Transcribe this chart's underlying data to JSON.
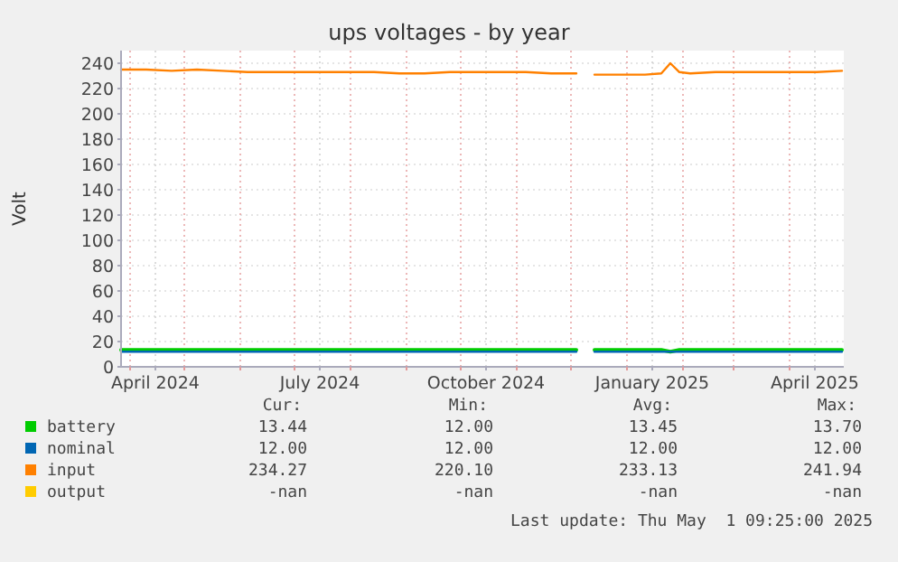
{
  "chart_data": {
    "type": "line",
    "title": "ups voltages - by year",
    "ylabel": "Volt",
    "x": [
      "2024-03-27",
      "2024-04-10",
      "2024-04-24",
      "2024-05-08",
      "2024-05-22",
      "2024-06-05",
      "2024-06-19",
      "2024-07-03",
      "2024-07-17",
      "2024-07-31",
      "2024-08-14",
      "2024-08-28",
      "2024-09-11",
      "2024-09-25",
      "2024-10-09",
      "2024-10-23",
      "2024-11-06",
      "2024-11-20",
      "2024-12-04",
      "2024-12-11",
      "2024-12-14",
      "2024-12-28",
      "2025-01-11",
      "2025-01-20",
      "2025-01-25",
      "2025-01-30",
      "2025-02-05",
      "2025-02-19",
      "2025-03-05",
      "2025-03-19",
      "2025-04-02",
      "2025-04-16",
      "2025-04-30"
    ],
    "series": [
      {
        "name": "battery",
        "color": "#00cc00",
        "values": [
          13.4,
          13.4,
          13.4,
          13.4,
          13.4,
          13.4,
          13.4,
          13.4,
          13.4,
          13.4,
          13.4,
          13.4,
          13.4,
          13.4,
          13.4,
          13.4,
          13.4,
          13.4,
          13.4,
          null,
          13.4,
          13.4,
          13.4,
          13.4,
          12,
          13.4,
          13.4,
          13.4,
          13.4,
          13.4,
          13.4,
          13.4,
          13.4
        ]
      },
      {
        "name": "nominal",
        "color": "#0066b3",
        "values": [
          12,
          12,
          12,
          12,
          12,
          12,
          12,
          12,
          12,
          12,
          12,
          12,
          12,
          12,
          12,
          12,
          12,
          12,
          12,
          null,
          12,
          12,
          12,
          12,
          12,
          12,
          12,
          12,
          12,
          12,
          12,
          12,
          12
        ]
      },
      {
        "name": "input",
        "color": "#ff8000",
        "values": [
          235,
          235,
          234,
          235,
          234,
          233,
          233,
          233,
          233,
          233,
          233,
          232,
          232,
          233,
          233,
          233,
          233,
          232,
          232,
          null,
          231,
          231,
          231,
          232,
          240,
          233,
          232,
          233,
          233,
          233,
          233,
          233,
          234
        ]
      },
      {
        "name": "output",
        "color": "#ffcc00",
        "values": [
          null,
          null,
          null,
          null,
          null,
          null,
          null,
          null,
          null,
          null,
          null,
          null,
          null,
          null,
          null,
          null,
          null,
          null,
          null,
          null,
          null,
          null,
          null,
          null,
          null,
          null,
          null,
          null,
          null,
          null,
          null,
          null,
          null
        ]
      }
    ],
    "xlim": [
      "2024-03-27",
      "2025-05-01"
    ],
    "xticks": [
      {
        "value": "2024-04-01",
        "label": null
      },
      {
        "value": "2024-04-15",
        "label": "April 2024"
      },
      {
        "value": "2024-05-01",
        "label": null
      },
      {
        "value": "2024-06-01",
        "label": null
      },
      {
        "value": "2024-07-01",
        "label": null
      },
      {
        "value": "2024-07-15",
        "label": "July 2024"
      },
      {
        "value": "2024-08-01",
        "label": null
      },
      {
        "value": "2024-09-01",
        "label": null
      },
      {
        "value": "2024-10-01",
        "label": null
      },
      {
        "value": "2024-10-15",
        "label": "October 2024"
      },
      {
        "value": "2024-11-01",
        "label": null
      },
      {
        "value": "2024-12-01",
        "label": null
      },
      {
        "value": "2025-01-01",
        "label": null
      },
      {
        "value": "2025-01-15",
        "label": "January 2025"
      },
      {
        "value": "2025-02-01",
        "label": null
      },
      {
        "value": "2025-03-01",
        "label": null
      },
      {
        "value": "2025-04-01",
        "label": null
      },
      {
        "value": "2025-04-15",
        "label": "April 2025"
      }
    ],
    "ylim": [
      0,
      250
    ],
    "yticks": [
      0,
      20,
      40,
      60,
      80,
      100,
      120,
      140,
      160,
      180,
      200,
      220,
      240
    ],
    "grid": true,
    "legend": "bottom",
    "marker": "none",
    "line_style": "solid",
    "annotations": [
      "Cur:",
      "Min:",
      "Avg:",
      "Max:",
      "13.44",
      "12.00",
      "13.45",
      "13.70",
      "12.00",
      "12.00",
      "12.00",
      "12.00",
      "234.27",
      "220.10",
      "233.13",
      "241.94",
      "-nan",
      "-nan",
      "-nan",
      "-nan",
      "Last update: Thu May  1 09:25:00 2025"
    ]
  }
}
